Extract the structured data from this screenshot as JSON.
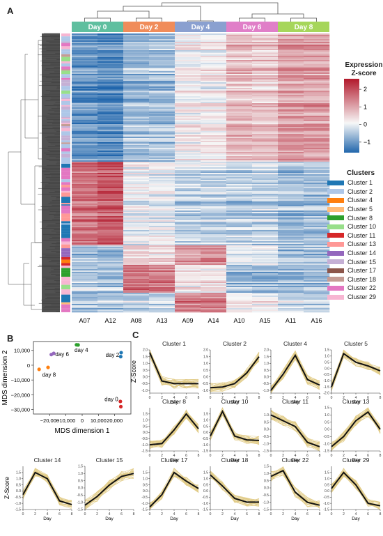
{
  "panels": {
    "a": "A",
    "b": "B",
    "c": "C"
  },
  "heatmap": {
    "days": [
      {
        "label": "Day 0",
        "color": "#5fbf9f"
      },
      {
        "label": "Day 2",
        "color": "#f08c5a"
      },
      {
        "label": "Day 4",
        "color": "#8aa0d0"
      },
      {
        "label": "Day 6",
        "color": "#e07fc8"
      },
      {
        "label": "Day 8",
        "color": "#a6d65a"
      }
    ],
    "samples": [
      "A07",
      "A12",
      "A08",
      "A13",
      "A09",
      "A14",
      "A10",
      "A15",
      "A11",
      "A16"
    ],
    "colorbar": {
      "title_line1": "Expression",
      "title_line2": "Z-score",
      "ticks": [
        "2",
        "1",
        "0",
        "−1"
      ],
      "high_color": "#b2182b",
      "mid_color": "#f7f7f7",
      "low_color": "#2166ac"
    },
    "clusters_title": "Clusters",
    "clusters": [
      {
        "label": "Cluster 1",
        "color": "#1f77b4"
      },
      {
        "label": "Cluster 2",
        "color": "#aec7e8"
      },
      {
        "label": "Cluster 4",
        "color": "#ff7f0e"
      },
      {
        "label": "Cluster 5",
        "color": "#ffbb78"
      },
      {
        "label": "Cluster 8",
        "color": "#2ca02c"
      },
      {
        "label": "Cluster 10",
        "color": "#98df8a"
      },
      {
        "label": "Cluster 11",
        "color": "#d62728"
      },
      {
        "label": "Cluster 13",
        "color": "#ff9896"
      },
      {
        "label": "Cluster 14",
        "color": "#9467bd"
      },
      {
        "label": "Cluster 15",
        "color": "#c5b0d5"
      },
      {
        "label": "Cluster 17",
        "color": "#8c564b"
      },
      {
        "label": "Cluster 18",
        "color": "#c49c94"
      },
      {
        "label": "Cluster 22",
        "color": "#e377c2"
      },
      {
        "label": "Cluster 29",
        "color": "#f7b6d2"
      }
    ]
  },
  "chart_data": [
    {
      "type": "heatmap",
      "title": "",
      "columns": [
        "A07",
        "A12",
        "A08",
        "A13",
        "A09",
        "A14",
        "A10",
        "A15",
        "A11",
        "A16"
      ],
      "column_groups": [
        "Day 0",
        "Day 0",
        "Day 2",
        "Day 2",
        "Day 4",
        "Day 4",
        "Day 6",
        "Day 6",
        "Day 8",
        "Day 8"
      ],
      "row_blocks": [
        {
          "rows_fraction": 0.46,
          "approx_zscore": [
            -1.0,
            -1.1,
            -0.6,
            -0.6,
            0.1,
            0.1,
            0.6,
            0.5,
            0.9,
            0.9
          ]
        },
        {
          "rows_fraction": 0.3,
          "approx_zscore": [
            1.3,
            1.5,
            -0.1,
            -0.1,
            -0.4,
            -0.4,
            -0.4,
            -0.4,
            -0.6,
            -0.6
          ]
        },
        {
          "rows_fraction": 0.07,
          "approx_zscore": [
            -0.6,
            -0.7,
            0.3,
            0.3,
            0.9,
            1.0,
            -0.2,
            -0.2,
            -0.6,
            -0.6
          ]
        },
        {
          "rows_fraction": 0.1,
          "approx_zscore": [
            -0.4,
            -0.5,
            1.4,
            1.3,
            0.2,
            0.2,
            -0.6,
            -0.6,
            -0.6,
            -0.6
          ]
        },
        {
          "rows_fraction": 0.07,
          "approx_zscore": [
            -0.5,
            -0.5,
            -0.4,
            -0.3,
            1.2,
            1.2,
            0.1,
            0.1,
            -0.3,
            -0.3
          ]
        }
      ],
      "colorbar_range": [
        -1.6,
        2.6
      ]
    },
    {
      "type": "scatter",
      "title": "",
      "xlabel": "MDS dimension 1",
      "ylabel": "MDS dimension 2",
      "xlim": [
        -30000,
        30000
      ],
      "ylim": [
        -33000,
        16000
      ],
      "xticks": [
        -20000,
        -10000,
        0,
        10000,
        20000
      ],
      "yticks": [
        10000,
        0,
        -10000,
        -20000,
        -30000
      ],
      "xtick_labels": [
        "−20,000",
        "−10,000",
        "0",
        "10,000",
        "20,000"
      ],
      "ytick_labels": [
        "10,000",
        "0",
        "−10,000",
        "−20,000",
        "−30,000"
      ],
      "series": [
        {
          "name": "day 0",
          "color": "#d62728",
          "x": [
            23500,
            23800
          ],
          "y": [
            -24500,
            -28000
          ]
        },
        {
          "name": "day 2",
          "color": "#1f77b4",
          "x": [
            24000,
            23700
          ],
          "y": [
            8500,
            5800
          ]
        },
        {
          "name": "day 4",
          "color": "#2ca02c",
          "x": [
            -3500,
            -2500
          ],
          "y": [
            13800,
            13700
          ]
        },
        {
          "name": "day 6",
          "color": "#9467bd",
          "x": [
            -19000,
            -17500
          ],
          "y": [
            7200,
            8000
          ]
        },
        {
          "name": "day 8",
          "color": "#ff7f0e",
          "x": [
            -26500,
            -21000
          ],
          "y": [
            -2800,
            -1500
          ]
        }
      ]
    },
    {
      "type": "line",
      "title": "",
      "x": [
        0,
        2,
        4,
        6,
        8
      ],
      "xlabel": "Day",
      "ylabel": "Z-Score",
      "xticks": [
        0,
        2,
        4,
        6,
        8
      ],
      "panels": [
        {
          "name": "Cluster 1",
          "ylim": [
            -1.2,
            2.0
          ],
          "yticks": [
            2.0,
            1.5,
            1.0,
            0.5,
            0.0,
            -0.5,
            -1.0
          ],
          "mean": [
            1.8,
            -0.3,
            -0.5,
            -0.5,
            -0.5
          ]
        },
        {
          "name": "Cluster 2",
          "ylim": [
            -1.2,
            2.0
          ],
          "yticks": [
            2.0,
            1.5,
            1.0,
            0.5,
            0.0,
            -0.5,
            -1.0
          ],
          "mean": [
            -0.8,
            -0.75,
            -0.5,
            0.3,
            1.5
          ]
        },
        {
          "name": "Cluster 4",
          "ylim": [
            -1.2,
            2.0
          ],
          "yticks": [
            2.0,
            1.5,
            1.0,
            0.5,
            0.0,
            -0.5,
            -1.0
          ],
          "mean": [
            -1.0,
            0.2,
            1.6,
            -0.2,
            -0.6
          ]
        },
        {
          "name": "Cluster 5",
          "ylim": [
            -2.0,
            1.5
          ],
          "yticks": [
            1.5,
            1.0,
            0.5,
            0.0,
            -0.5,
            -1.0,
            -1.5,
            -2.0
          ],
          "mean": [
            -1.5,
            1.2,
            0.5,
            0.2,
            -0.2
          ]
        },
        {
          "name": "Cluster 8",
          "ylim": [
            -1.5,
            2.0
          ],
          "yticks": [
            1.5,
            1.0,
            0.5,
            0.0,
            -0.5,
            -1.0,
            -1.5
          ],
          "mean": [
            -1.0,
            -0.9,
            0.2,
            1.5,
            0.3
          ]
        },
        {
          "name": "Cluster 10",
          "ylim": [
            -1.5,
            2.0
          ],
          "yticks": [
            1.5,
            1.0,
            0.5,
            0.0,
            -0.5,
            -1.0,
            -1.5
          ],
          "mean": [
            -0.3,
            1.7,
            -0.3,
            -0.6,
            -0.65
          ]
        },
        {
          "name": "Cluster 11",
          "ylim": [
            -1.5,
            1.5
          ],
          "yticks": [
            1.0,
            0.5,
            0.0,
            -0.5,
            -1.0,
            -1.5
          ],
          "mean": [
            1.0,
            0.6,
            0.2,
            -0.9,
            -1.2
          ]
        },
        {
          "name": "Cluster 13",
          "ylim": [
            -1.5,
            1.5
          ],
          "yticks": [
            1.5,
            1.0,
            0.5,
            0.0,
            -0.5,
            -1.0,
            -1.5
          ],
          "mean": [
            -1.2,
            -0.5,
            0.6,
            1.2,
            0.0
          ]
        },
        {
          "name": "Cluster 14",
          "ylim": [
            -1.5,
            2.0
          ],
          "yticks": [
            1.5,
            1.0,
            0.5,
            0.0,
            -0.5,
            -1.0,
            -1.5
          ],
          "mean": [
            -0.3,
            1.5,
            1.0,
            -0.8,
            -1.1
          ]
        },
        {
          "name": "Cluster 15",
          "ylim": [
            -1.5,
            1.5
          ],
          "yticks": [
            1.5,
            1.0,
            0.5,
            0.0,
            -0.5,
            -1.0,
            -1.5
          ],
          "mean": [
            -1.2,
            -0.6,
            0.2,
            0.8,
            1.0
          ]
        },
        {
          "name": "Cluster 17",
          "ylim": [
            -1.5,
            2.0
          ],
          "yticks": [
            1.5,
            1.0,
            0.5,
            0.0,
            -0.5,
            -1.0,
            -1.5
          ],
          "mean": [
            -1.3,
            -0.3,
            1.5,
            0.8,
            0.2
          ]
        },
        {
          "name": "Cluster 18",
          "ylim": [
            -1.5,
            2.0
          ],
          "yticks": [
            1.5,
            1.0,
            0.5,
            0.0,
            -0.5,
            -1.0,
            -1.5
          ],
          "mean": [
            1.3,
            0.4,
            -0.6,
            -0.9,
            -0.9
          ]
        },
        {
          "name": "Cluster 22",
          "ylim": [
            -1.5,
            1.5
          ],
          "yticks": [
            1.5,
            1.0,
            0.5,
            0.0,
            -0.5,
            -1.0,
            -1.5
          ],
          "mean": [
            0.8,
            1.2,
            -0.3,
            -1.0,
            -1.2
          ]
        },
        {
          "name": "Cluster 29",
          "ylim": [
            -1.5,
            2.0
          ],
          "yticks": [
            1.5,
            1.0,
            0.5,
            0.0,
            -0.5,
            -1.0,
            -1.5
          ],
          "mean": [
            0.2,
            1.5,
            0.5,
            -1.0,
            -1.2
          ]
        }
      ]
    }
  ]
}
